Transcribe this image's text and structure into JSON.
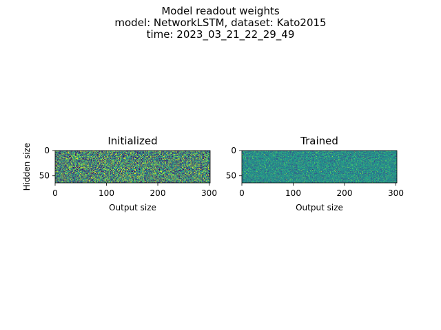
{
  "figure": {
    "title_lines": [
      "Model readout weights",
      "model: NetworkLSTM, dataset: Kato2015",
      "time: 2023_03_21_22_29_49"
    ]
  },
  "chart_data": [
    {
      "type": "heatmap",
      "title": "Initialized",
      "xlabel": "Output size",
      "ylabel": "Hidden size",
      "xlim": [
        0,
        302
      ],
      "ylim": [
        64,
        0
      ],
      "xticks": [
        0,
        100,
        200,
        300
      ],
      "yticks": [
        0,
        50
      ],
      "colormap": "viridis",
      "value_range": [
        -1,
        1
      ],
      "distribution": "uniform",
      "shape": [
        64,
        302
      ]
    },
    {
      "type": "heatmap",
      "title": "Trained",
      "xlabel": "Output size",
      "ylabel": "",
      "xlim": [
        0,
        302
      ],
      "ylim": [
        64,
        0
      ],
      "xticks": [
        0,
        100,
        200,
        300
      ],
      "yticks": [
        0,
        50
      ],
      "colormap": "viridis",
      "value_range": [
        -1,
        1
      ],
      "distribution": "narrow",
      "shape": [
        64,
        302
      ]
    }
  ]
}
